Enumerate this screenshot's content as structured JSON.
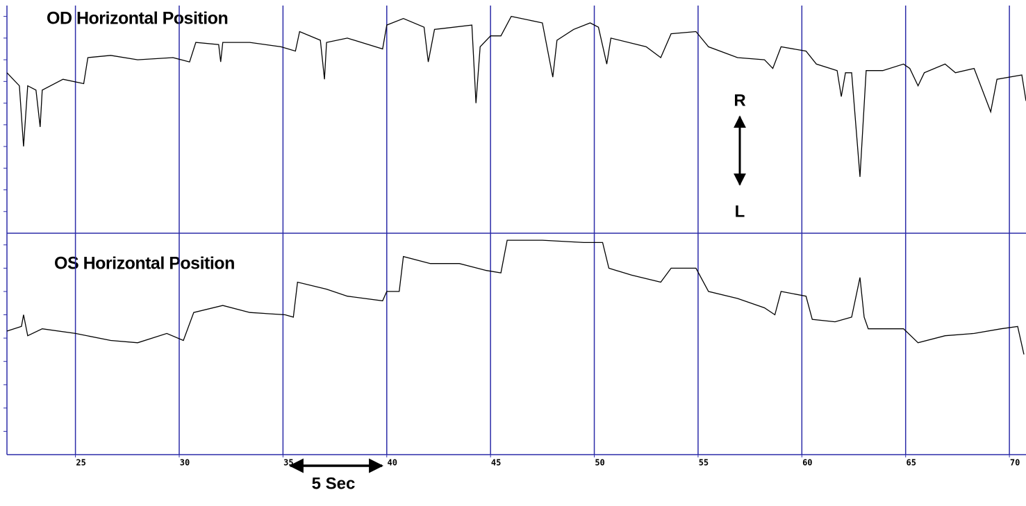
{
  "chart_data": [
    {
      "type": "line",
      "title": "OD Horizontal Position",
      "color": "#000000",
      "grid": true,
      "grid_color": "#2b2ba8",
      "xlim": [
        21.7,
        70.8
      ],
      "xticks": [
        25,
        30,
        35,
        40,
        45,
        50,
        55,
        60,
        65,
        70
      ],
      "ylim": [
        0,
        10.5
      ],
      "yticks": [
        1,
        2,
        3,
        4,
        5,
        6,
        7,
        8,
        9,
        10
      ],
      "annotations": [
        "R",
        "L"
      ],
      "x": [
        21.7,
        22.3,
        22.5,
        22.7,
        23.1,
        23.3,
        23.4,
        24.4,
        25.4,
        25.6,
        26.7,
        28.0,
        29.7,
        30.5,
        30.8,
        31.9,
        32.0,
        32.1,
        33.4,
        34.9,
        35.6,
        35.8,
        36.8,
        37.0,
        37.1,
        38.1,
        39.8,
        40.0,
        40.8,
        41.8,
        42.0,
        42.3,
        44.1,
        44.3,
        44.5,
        45.0,
        45.5,
        46.0,
        47.5,
        48.0,
        48.2,
        49.0,
        49.8,
        50.2,
        50.6,
        50.8,
        52.5,
        53.2,
        53.7,
        54.9,
        55.5,
        56.9,
        58.2,
        58.6,
        59.0,
        60.2,
        60.7,
        61.7,
        61.9,
        62.1,
        62.4,
        62.8,
        63.1,
        63.9,
        64.9,
        65.2,
        65.6,
        65.9,
        66.9,
        67.4,
        68.3,
        69.1,
        69.4,
        70.6,
        70.8
      ],
      "values": [
        7.4,
        6.8,
        4.0,
        6.8,
        6.6,
        4.9,
        6.6,
        7.1,
        6.9,
        8.1,
        8.2,
        8.0,
        8.1,
        7.9,
        8.8,
        8.7,
        7.9,
        8.8,
        8.8,
        8.6,
        8.4,
        9.3,
        8.9,
        7.1,
        8.8,
        9.0,
        8.5,
        9.6,
        9.9,
        9.5,
        7.9,
        9.4,
        9.6,
        6.0,
        8.6,
        9.1,
        9.1,
        10.0,
        9.7,
        7.2,
        8.9,
        9.4,
        9.7,
        9.5,
        7.8,
        9.0,
        8.6,
        8.1,
        9.2,
        9.3,
        8.6,
        8.1,
        8.0,
        7.6,
        8.6,
        8.4,
        7.8,
        7.5,
        6.3,
        7.4,
        7.4,
        2.6,
        7.5,
        7.5,
        7.8,
        7.6,
        6.8,
        7.4,
        7.8,
        7.4,
        7.6,
        5.6,
        7.1,
        7.3,
        6.1
      ]
    },
    {
      "type": "line",
      "title": "OS Horizontal Position",
      "color": "#000000",
      "grid": true,
      "grid_color": "#2b2ba8",
      "xlim": [
        21.7,
        70.8
      ],
      "xticks": [
        25,
        30,
        35,
        40,
        45,
        50,
        55,
        60,
        65,
        70
      ],
      "ylim": [
        0,
        9.5
      ],
      "yticks": [
        1,
        2,
        3,
        4,
        5,
        6,
        7,
        8,
        9
      ],
      "annotations": [
        "5 Sec"
      ],
      "x": [
        21.7,
        22.4,
        22.5,
        22.7,
        23.4,
        25.0,
        26.7,
        28.0,
        29.4,
        30.2,
        30.7,
        32.1,
        33.4,
        35.1,
        35.5,
        35.7,
        37.1,
        38.1,
        39.8,
        40.0,
        40.6,
        40.8,
        42.1,
        43.5,
        44.8,
        45.5,
        45.8,
        47.5,
        49.5,
        50.4,
        50.7,
        51.8,
        53.2,
        53.7,
        54.9,
        55.5,
        56.9,
        58.2,
        58.7,
        59.0,
        60.2,
        60.5,
        61.6,
        62.4,
        62.8,
        63.0,
        63.2,
        64.9,
        65.6,
        66.9,
        68.3,
        69.6,
        70.4,
        70.7
      ],
      "values": [
        5.3,
        5.5,
        6.0,
        5.1,
        5.4,
        5.2,
        4.9,
        4.8,
        5.2,
        4.9,
        6.1,
        6.4,
        6.1,
        6.0,
        5.9,
        7.4,
        7.1,
        6.8,
        6.6,
        7.0,
        7.0,
        8.5,
        8.2,
        8.2,
        7.9,
        7.8,
        9.2,
        9.2,
        9.1,
        9.1,
        8.0,
        7.7,
        7.4,
        8.0,
        8.0,
        7.0,
        6.7,
        6.3,
        6.0,
        7.0,
        6.8,
        5.8,
        5.7,
        5.9,
        7.6,
        5.9,
        5.4,
        5.4,
        4.8,
        5.1,
        5.2,
        5.4,
        5.5,
        4.3
      ]
    }
  ]
}
